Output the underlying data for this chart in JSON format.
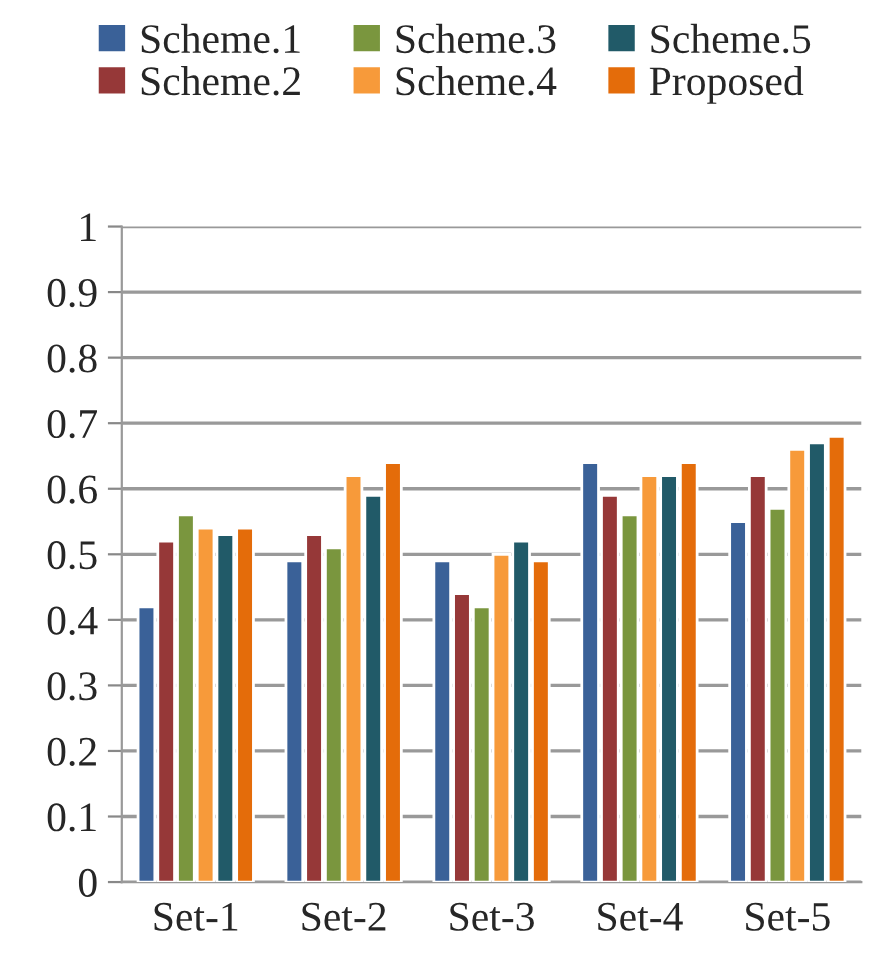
{
  "chart_data": {
    "type": "bar",
    "categories": [
      "Set-1",
      "Set-2",
      "Set-3",
      "Set-4",
      "Set-5"
    ],
    "series": [
      {
        "name": "Scheme.1",
        "color": "#3a6198",
        "values": [
          0.42,
          0.49,
          0.49,
          0.64,
          0.55
        ]
      },
      {
        "name": "Scheme.2",
        "color": "#963838",
        "values": [
          0.52,
          0.53,
          0.44,
          0.59,
          0.62
        ]
      },
      {
        "name": "Scheme.3",
        "color": "#7a963e",
        "values": [
          0.56,
          0.51,
          0.42,
          0.56,
          0.57
        ]
      },
      {
        "name": "Scheme.4",
        "color": "#f79a3a",
        "values": [
          0.54,
          0.62,
          0.5,
          0.62,
          0.66
        ]
      },
      {
        "name": "Scheme.5",
        "color": "#215a68",
        "values": [
          0.53,
          0.59,
          0.52,
          0.62,
          0.67
        ]
      },
      {
        "name": "Proposed",
        "color": "#e46c0a",
        "values": [
          0.54,
          0.64,
          0.49,
          0.64,
          0.68
        ]
      }
    ],
    "ylim": [
      0,
      1
    ],
    "yticks": [
      0,
      0.1,
      0.2,
      0.3,
      0.4,
      0.5,
      0.6,
      0.7,
      0.8,
      0.9,
      1
    ],
    "grid": "y",
    "legend": "top"
  }
}
